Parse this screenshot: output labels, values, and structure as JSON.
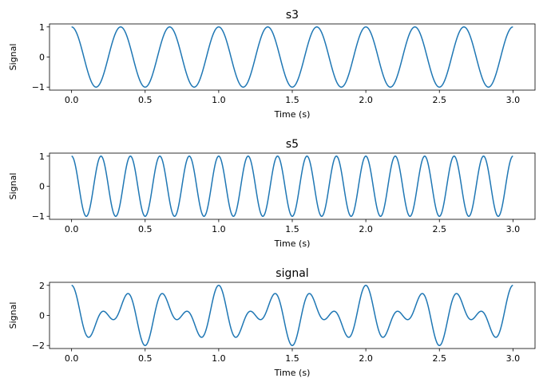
{
  "chart_data": [
    {
      "type": "line",
      "title": "s3",
      "xlabel": "Time (s)",
      "ylabel": "Signal",
      "xlim": [
        -0.15,
        3.15
      ],
      "ylim": [
        -1.1,
        1.1
      ],
      "xticks": [
        0.0,
        0.5,
        1.0,
        1.5,
        2.0,
        2.5,
        3.0
      ],
      "xtick_labels": [
        "0.0",
        "0.5",
        "1.0",
        "1.5",
        "2.0",
        "2.5",
        "3.0"
      ],
      "yticks": [
        1,
        0,
        -1
      ],
      "ytick_labels": [
        "1",
        "0",
        "−1"
      ],
      "grid": false,
      "color": "#1f77b4",
      "x_range": [
        0,
        3
      ],
      "samples": 1200,
      "components": [
        {
          "amplitude": 1,
          "frequency_hz": 3
        }
      ]
    },
    {
      "type": "line",
      "title": "s5",
      "xlabel": "Time (s)",
      "ylabel": "Signal",
      "xlim": [
        -0.15,
        3.15
      ],
      "ylim": [
        -1.1,
        1.1
      ],
      "xticks": [
        0.0,
        0.5,
        1.0,
        1.5,
        2.0,
        2.5,
        3.0
      ],
      "xtick_labels": [
        "0.0",
        "0.5",
        "1.0",
        "1.5",
        "2.0",
        "2.5",
        "3.0"
      ],
      "yticks": [
        1,
        0,
        -1
      ],
      "ytick_labels": [
        "1",
        "0",
        "−1"
      ],
      "grid": false,
      "color": "#1f77b4",
      "x_range": [
        0,
        3
      ],
      "samples": 1200,
      "components": [
        {
          "amplitude": 1,
          "frequency_hz": 5
        }
      ]
    },
    {
      "type": "line",
      "title": "signal",
      "xlabel": "Time (s)",
      "ylabel": "Signal",
      "xlim": [
        -0.15,
        3.15
      ],
      "ylim": [
        -2.2,
        2.2
      ],
      "xticks": [
        0.0,
        0.5,
        1.0,
        1.5,
        2.0,
        2.5,
        3.0
      ],
      "xtick_labels": [
        "0.0",
        "0.5",
        "1.0",
        "1.5",
        "2.0",
        "2.5",
        "3.0"
      ],
      "yticks": [
        2,
        0,
        -2
      ],
      "ytick_labels": [
        "2",
        "0",
        "−2"
      ],
      "grid": false,
      "color": "#1f77b4",
      "x_range": [
        0,
        3
      ],
      "samples": 1200,
      "components": [
        {
          "amplitude": 1,
          "frequency_hz": 3
        },
        {
          "amplitude": 1,
          "frequency_hz": 5
        }
      ]
    }
  ]
}
